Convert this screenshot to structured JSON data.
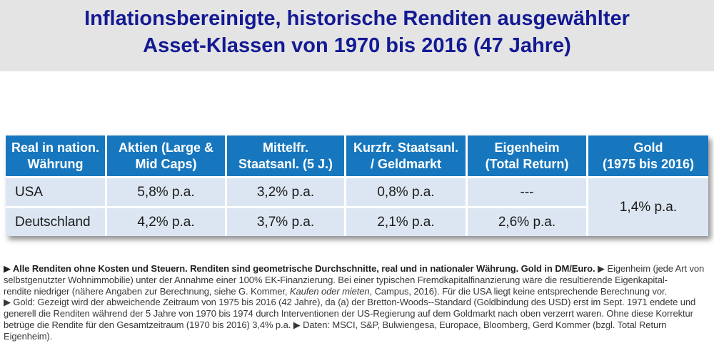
{
  "title": {
    "line1": "Inflationsbereinigte, historische Renditen ausgewählter",
    "line2": "Asset-Klassen von 1970 bis 2016 (47 Jahre)"
  },
  "table": {
    "columns": [
      {
        "label": "Real in nation.\nWährung"
      },
      {
        "label": "Aktien (Large &\nMid Caps)"
      },
      {
        "label": "Mittelfr.\nStaatsanl. (5 J.)"
      },
      {
        "label": "Kurzfr. Staatsanl.\n/ Geldmarkt"
      },
      {
        "label": "Eigenheim\n(Total Return)"
      },
      {
        "label": "Gold\n(1975 bis 2016)"
      }
    ],
    "rows": [
      {
        "label": "USA",
        "aktien": "5,8% p.a.",
        "mittelfr": "3,2% p.a.",
        "kurzfr": "0,8% p.a.",
        "eigenheim": "---"
      },
      {
        "label": "Deutschland",
        "aktien": "4,2% p.a.",
        "mittelfr": "3,7% p.a.",
        "kurzfr": "2,1% p.a.",
        "eigenheim": "2,6% p.a."
      }
    ],
    "gold_merged_value": "1,4% p.a."
  },
  "footnote": {
    "lines": [
      [
        {
          "t": "▶ Alle Renditen ohne Kosten und Steuern. Renditen sind geometrische Durchschnitte, real und in nationaler Währung. Gold in DM/Euro.",
          "b": 1
        },
        {
          "t": " ▶ Eigenheim (jede Art von"
        }
      ],
      [
        {
          "t": "selbstgenutzter Wohnimmobilie) unter der Annahme einer 100% EK-Finanzierung. Bei einer typischen Fremdkapitalfinanzierung wäre die resultierende Eigenkapital-"
        }
      ],
      [
        {
          "t": "rendite niedriger (nähere Angaben zur Berechnung, siehe G. Kommer, "
        },
        {
          "t": "Kaufen oder mieten",
          "i": 1
        },
        {
          "t": ", Campus, 2016). Für die USA liegt keine entsprechende Berechnung vor."
        }
      ],
      [
        {
          "t": "▶ Gold: Gezeigt wird der abweichende Zeitraum von 1975 bis 2016 (42 Jahre), da (a) der Bretton-Woods--Standard (Goldbindung des USD) erst im Sept. 1971 endete und"
        }
      ],
      [
        {
          "t": "generell die Renditen während der 5 Jahre von 1970 bis 1974 durch Interventionen der US-Regierung auf dem Goldmarkt nach oben verzerrt waren. Ohne diese Korrektur"
        }
      ],
      [
        {
          "t": "betrüge die Rendite für den Gesamtzeitraum (1970 bis 2016) 3,4% p.a. ▶ Daten: MSCI, S&P, Bulwiengesa, Europace, Bloomberg, Gerd Kommer (bzgl. Total Return"
        }
      ],
      [
        {
          "t": "Eigenheim)."
        }
      ]
    ]
  },
  "colors": {
    "header_blue": "#1777be",
    "row_light_blue": "#dce6f2",
    "title_blue": "#131a94",
    "title_band_gray": "#e5e4e4"
  }
}
